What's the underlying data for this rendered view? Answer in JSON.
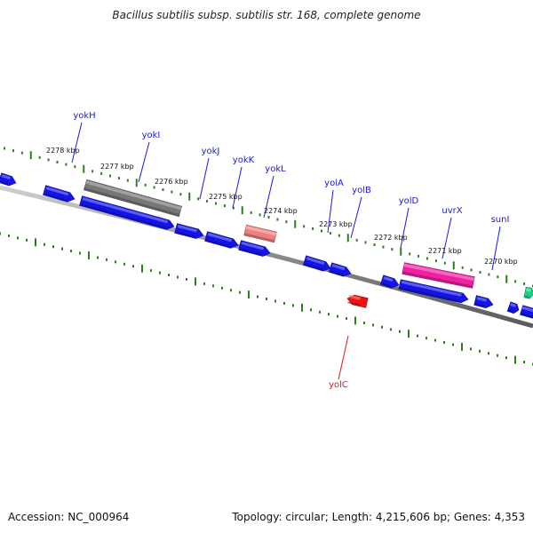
{
  "title": "Bacillus subtilis subsp. subtilis str. 168, complete genome",
  "footer": {
    "accession": "Accession: NC_000964",
    "summary": "Topology: circular; Length: 4,215,606 bp; Genes: 4,353"
  },
  "colors": {
    "backbone": "#888888",
    "tick": "#2e7d1e",
    "label_plus": "#1a1ad6",
    "label_minus": "#d61a1a",
    "gene_blue": "#1414e6",
    "gene_gray": "#777777",
    "gene_salmon": "#f08080",
    "gene_magenta": "#f020a0",
    "gene_red": "#ee1111",
    "gene_teal": "#1ecf8a"
  },
  "ruler_labels": [
    "2278 kbp",
    "2277 kbp",
    "2276 kbp",
    "2275 kbp",
    "2274 kbp",
    "2273 kbp",
    "2272 kbp",
    "2271 kbp",
    "2270 kbp"
  ],
  "gene_labels_plus": [
    "yokH",
    "yokI",
    "yokJ",
    "yokK",
    "yokL",
    "yolA",
    "yolB",
    "yolD",
    "uvrX",
    "sunI"
  ],
  "gene_labels_minus": [
    "yolC"
  ]
}
